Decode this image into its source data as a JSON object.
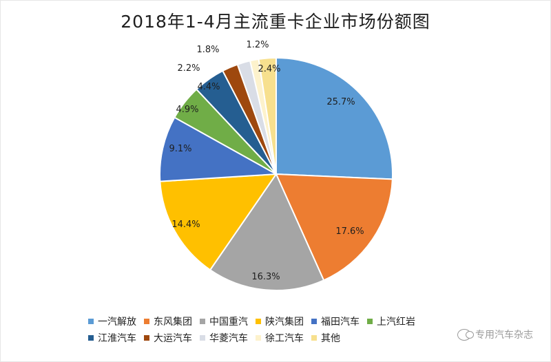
{
  "chart_data": {
    "type": "pie",
    "title": "2018年1-4月主流重卡企业市场份额图",
    "legend_position": "bottom",
    "slices": [
      {
        "label": "一汽解放",
        "value": 25.7,
        "display": "25.7%",
        "color": "#5b9bd5"
      },
      {
        "label": "东风集团",
        "value": 17.6,
        "display": "17.6%",
        "color": "#ed7d31"
      },
      {
        "label": "中国重汽",
        "value": 16.3,
        "display": "16.3%",
        "color": "#a5a5a5"
      },
      {
        "label": "陕汽集团",
        "value": 14.4,
        "display": "14.4%",
        "color": "#ffc000"
      },
      {
        "label": "福田汽车",
        "value": 9.1,
        "display": "9.1%",
        "color": "#4472c4"
      },
      {
        "label": "上汽红岩",
        "value": 4.9,
        "display": "4.9%",
        "color": "#70ad47"
      },
      {
        "label": "江淮汽车",
        "value": 4.4,
        "display": "4.4%",
        "color": "#255e91"
      },
      {
        "label": "大运汽车",
        "value": 2.2,
        "display": "2.2%",
        "color": "#9e480e"
      },
      {
        "label": "华菱汽车",
        "value": 1.8,
        "display": "1.8%",
        "color": "#d9dde6"
      },
      {
        "label": "徐工汽车",
        "value": 1.2,
        "display": "1.2%",
        "color": "#fdf2cc"
      },
      {
        "label": "其他",
        "value": 2.4,
        "display": "2.4%",
        "color": "#f7e08e"
      }
    ]
  },
  "legend": {
    "row1": [
      {
        "label": "一汽解放",
        "color": "#5b9bd5"
      },
      {
        "label": "东风集团",
        "color": "#ed7d31"
      },
      {
        "label": "中国重汽",
        "color": "#a5a5a5"
      },
      {
        "label": "陕汽集团",
        "color": "#ffc000"
      },
      {
        "label": "福田汽车",
        "color": "#4472c4"
      },
      {
        "label": "上汽红岩",
        "color": "#70ad47"
      }
    ],
    "row2": [
      {
        "label": "江淮汽车",
        "color": "#255e91"
      },
      {
        "label": "大运汽车",
        "color": "#9e480e"
      },
      {
        "label": "华菱汽车",
        "color": "#d9dde6"
      },
      {
        "label": "徐工汽车",
        "color": "#fdf2cc"
      },
      {
        "label": "其他",
        "color": "#f7e08e"
      }
    ]
  },
  "watermark": {
    "text": "专用汽车杂志",
    "icon": "wechat-icon"
  }
}
